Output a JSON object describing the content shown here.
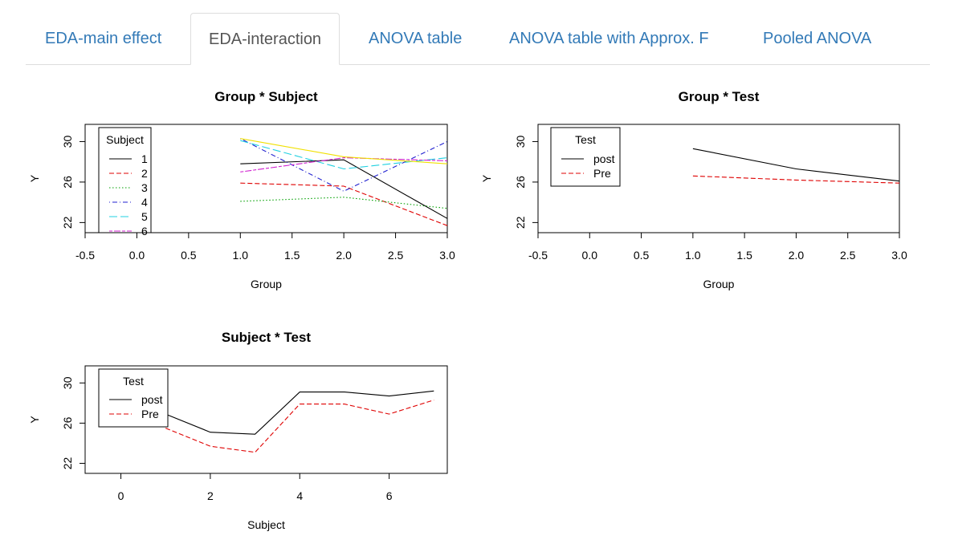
{
  "tabs": [
    {
      "label": "EDA-main effect",
      "active": false
    },
    {
      "label": "EDA-interaction",
      "active": true
    },
    {
      "label": "ANOVA table",
      "active": false
    },
    {
      "label": "ANOVA table with Approx. F",
      "active": false
    },
    {
      "label": "Pooled ANOVA",
      "active": false
    }
  ],
  "chart_data": [
    {
      "type": "line",
      "title": "Group * Subject",
      "xlabel": "Group",
      "ylabel": "Y",
      "xlim": [
        -0.5,
        3.0
      ],
      "ylim": [
        22,
        30
      ],
      "x_ticks": [
        "-0.5",
        "0.0",
        "0.5",
        "1.0",
        "1.5",
        "2.0",
        "2.5",
        "3.0"
      ],
      "y_ticks": [
        "22",
        "26",
        "30"
      ],
      "legend_title": "Subject",
      "legend_position": "top-left",
      "x": [
        1,
        2,
        3
      ],
      "series": [
        {
          "name": "1",
          "values": [
            27.8,
            28.2,
            22.4
          ],
          "color": "#000000",
          "dash": "solid"
        },
        {
          "name": "2",
          "values": [
            25.9,
            25.6,
            21.7
          ],
          "color": "#df0000",
          "dash": "dashed"
        },
        {
          "name": "3",
          "values": [
            24.1,
            24.5,
            23.4
          ],
          "color": "#00a000",
          "dash": "dotted"
        },
        {
          "name": "4",
          "values": [
            30.3,
            25.1,
            30.0
          ],
          "color": "#2020d0",
          "dash": "dotdash"
        },
        {
          "name": "5",
          "values": [
            30.1,
            27.3,
            28.4
          ],
          "color": "#20d0e0",
          "dash": "longdash"
        },
        {
          "name": "6",
          "values": [
            27.0,
            28.4,
            28.1
          ],
          "color": "#d020d0",
          "dash": "twodash"
        },
        {
          "name": "",
          "values": [
            30.3,
            28.5,
            27.8
          ],
          "color": "#f0e000",
          "dash": "solid"
        }
      ]
    },
    {
      "type": "line",
      "title": "Group * Test",
      "xlabel": "Group",
      "ylabel": "Y",
      "xlim": [
        -0.5,
        3.0
      ],
      "ylim": [
        22,
        30
      ],
      "x_ticks": [
        "-0.5",
        "0.0",
        "0.5",
        "1.0",
        "1.5",
        "2.0",
        "2.5",
        "3.0"
      ],
      "y_ticks": [
        "22",
        "26",
        "30"
      ],
      "legend_title": "Test",
      "legend_position": "top-left",
      "x": [
        1,
        2,
        3
      ],
      "series": [
        {
          "name": "post",
          "values": [
            29.3,
            27.3,
            26.1
          ],
          "color": "#000000",
          "dash": "solid"
        },
        {
          "name": "Pre",
          "values": [
            26.6,
            26.2,
            25.9
          ],
          "color": "#df0000",
          "dash": "dashed"
        }
      ]
    },
    {
      "type": "line",
      "title": "Subject * Test",
      "xlabel": "Subject",
      "ylabel": "Y",
      "xlim": [
        -0.8,
        7.3
      ],
      "ylim": [
        22,
        30
      ],
      "x_ticks": [
        "0",
        "2",
        "4",
        "6"
      ],
      "y_ticks": [
        "22",
        "26",
        "30"
      ],
      "legend_title": "Test",
      "legend_position": "top-left",
      "x": [
        1,
        2,
        3,
        4,
        5,
        6,
        7
      ],
      "series": [
        {
          "name": "post",
          "values": [
            26.9,
            25.1,
            24.9,
            29.1,
            29.1,
            28.7,
            29.2
          ],
          "color": "#000000",
          "dash": "solid"
        },
        {
          "name": "Pre",
          "values": [
            25.5,
            23.7,
            23.1,
            27.9,
            27.9,
            26.9,
            28.3
          ],
          "color": "#df0000",
          "dash": "dashed"
        }
      ]
    }
  ]
}
